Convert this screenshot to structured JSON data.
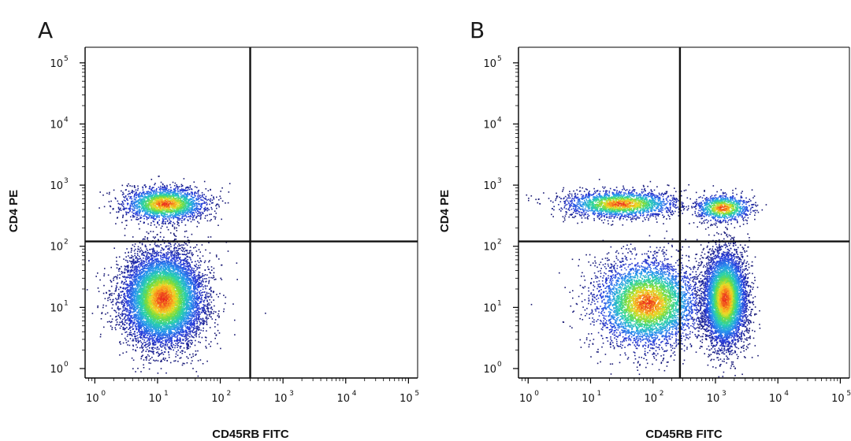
{
  "chart_data": [
    {
      "type": "scatter",
      "panel_label": "A",
      "xlabel": "CD45RB FITC",
      "ylabel": "CD4 PE",
      "x_scale": "log",
      "y_scale": "log",
      "xlim": [
        0.7,
        140000
      ],
      "ylim": [
        0.7,
        180000
      ],
      "x_ticks": [
        {
          "base": "10",
          "exp": "0",
          "value": 1
        },
        {
          "base": "10",
          "exp": "1",
          "value": 10
        },
        {
          "base": "10",
          "exp": "2",
          "value": 100
        },
        {
          "base": "10",
          "exp": "3",
          "value": 1000
        },
        {
          "base": "10",
          "exp": "4",
          "value": 10000
        },
        {
          "base": "10",
          "exp": "5",
          "value": 100000
        }
      ],
      "y_ticks": [
        {
          "base": "10",
          "exp": "0",
          "value": 1
        },
        {
          "base": "10",
          "exp": "1",
          "value": 10
        },
        {
          "base": "10",
          "exp": "2",
          "value": 100
        },
        {
          "base": "10",
          "exp": "3",
          "value": 1000
        },
        {
          "base": "10",
          "exp": "4",
          "value": 10000
        },
        {
          "base": "10",
          "exp": "5",
          "value": 100000
        }
      ],
      "quadrant_gate": {
        "x": 300,
        "y": 120
      },
      "populations": [
        {
          "x": 13,
          "y": 500,
          "count": 2300,
          "spread_x": 0.33,
          "spread_y": 0.14
        },
        {
          "x": 12,
          "y": 14,
          "count": 9000,
          "spread_x": 0.32,
          "spread_y": 0.38
        }
      ],
      "grid": false,
      "color_scale": "density (blue to red)"
    },
    {
      "type": "scatter",
      "panel_label": "B",
      "xlabel": "CD45RB FITC",
      "ylabel": "CD4 PE",
      "x_scale": "log",
      "y_scale": "log",
      "xlim": [
        0.7,
        140000
      ],
      "ylim": [
        0.7,
        180000
      ],
      "x_ticks": [
        {
          "base": "10",
          "exp": "0",
          "value": 1
        },
        {
          "base": "10",
          "exp": "1",
          "value": 10
        },
        {
          "base": "10",
          "exp": "2",
          "value": 100
        },
        {
          "base": "10",
          "exp": "3",
          "value": 1000
        },
        {
          "base": "10",
          "exp": "4",
          "value": 10000
        },
        {
          "base": "10",
          "exp": "5",
          "value": 100000
        }
      ],
      "y_ticks": [
        {
          "base": "10",
          "exp": "0",
          "value": 1
        },
        {
          "base": "10",
          "exp": "1",
          "value": 10
        },
        {
          "base": "10",
          "exp": "2",
          "value": 100
        },
        {
          "base": "10",
          "exp": "3",
          "value": 1000
        },
        {
          "base": "10",
          "exp": "4",
          "value": 10000
        },
        {
          "base": "10",
          "exp": "5",
          "value": 100000
        }
      ],
      "quadrant_gate": {
        "x": 270,
        "y": 120
      },
      "populations": [
        {
          "x": 30,
          "y": 500,
          "count": 2200,
          "spread_x": 0.45,
          "spread_y": 0.11
        },
        {
          "x": 1300,
          "y": 430,
          "count": 1000,
          "spread_x": 0.22,
          "spread_y": 0.11
        },
        {
          "x": 80,
          "y": 12,
          "count": 5000,
          "spread_x": 0.42,
          "spread_y": 0.36
        },
        {
          "x": 1400,
          "y": 14,
          "count": 6000,
          "spread_x": 0.17,
          "spread_y": 0.38
        }
      ],
      "grid": false,
      "color_scale": "density (blue to red)"
    }
  ]
}
